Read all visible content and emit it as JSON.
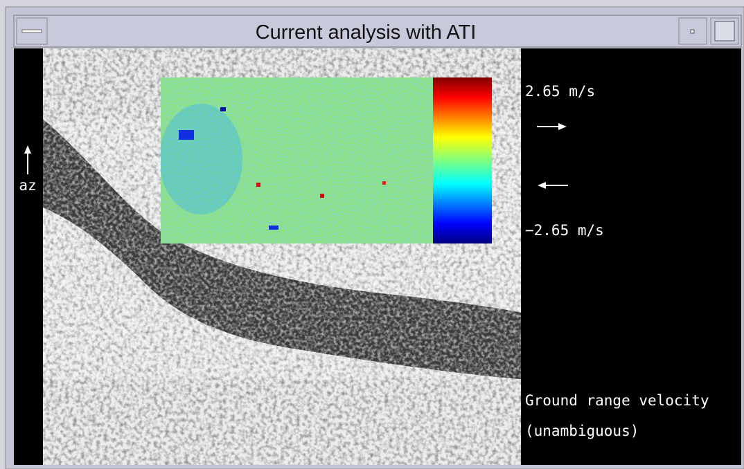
{
  "window": {
    "title": "Current analysis with ATI"
  },
  "image": {
    "axis_label": "az"
  },
  "legend": {
    "max_label": "2.65 m/s",
    "min_label": "−2.65 m/s",
    "caption_line1": "Ground range velocity",
    "caption_line2": "(unambiguous)"
  }
}
